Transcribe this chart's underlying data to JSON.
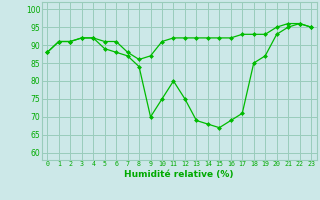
{
  "x": [
    0,
    1,
    2,
    3,
    4,
    5,
    6,
    7,
    8,
    9,
    10,
    11,
    12,
    13,
    14,
    15,
    16,
    17,
    18,
    19,
    20,
    21,
    22,
    23
  ],
  "line1": [
    88,
    91,
    91,
    92,
    92,
    91,
    91,
    88,
    86,
    87,
    91,
    92,
    92,
    92,
    92,
    92,
    92,
    93,
    93,
    93,
    95,
    96,
    96,
    95
  ],
  "line2": [
    88,
    91,
    91,
    92,
    92,
    89,
    88,
    87,
    84,
    70,
    75,
    80,
    75,
    69,
    68,
    67,
    69,
    71,
    85,
    87,
    93,
    95,
    96,
    95
  ],
  "line_color": "#00bb00",
  "bg_color": "#cce8e8",
  "grid_color": "#99ccbb",
  "xlabel": "Humidité relative (%)",
  "xlabel_color": "#00aa00",
  "tick_color": "#00aa00",
  "ylim": [
    58,
    102
  ],
  "xlim": [
    -0.5,
    23.5
  ],
  "yticks": [
    60,
    65,
    70,
    75,
    80,
    85,
    90,
    95,
    100
  ],
  "xticks": [
    0,
    1,
    2,
    3,
    4,
    5,
    6,
    7,
    8,
    9,
    10,
    11,
    12,
    13,
    14,
    15,
    16,
    17,
    18,
    19,
    20,
    21,
    22,
    23
  ]
}
